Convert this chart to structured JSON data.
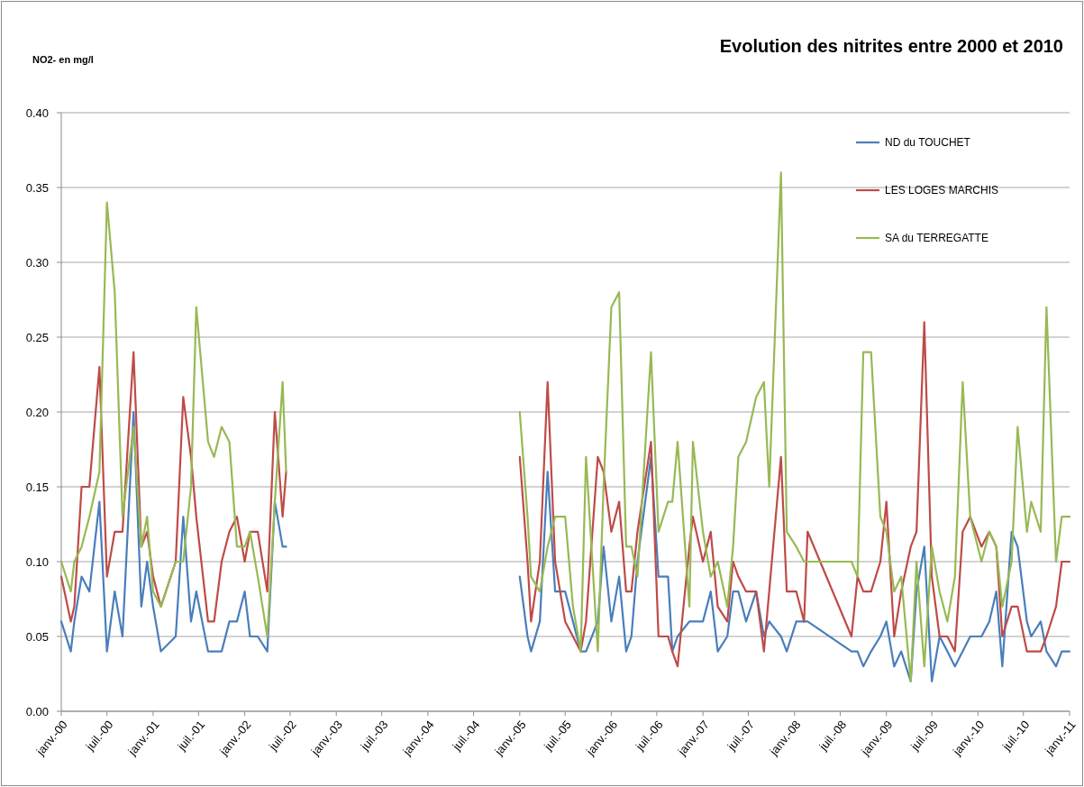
{
  "chart_data": {
    "type": "line",
    "title": "Evolution des nitrites entre 2000 et 2010",
    "ylabel": "NO2- en mg/l",
    "x": [
      "2000-01-01",
      "2000-02-08",
      "2000-02-22",
      "2000-03-22",
      "2000-04-22",
      "2000-06-01",
      "2000-07-01",
      "2000-08-01",
      "2000-09-01",
      "2000-10-15",
      "2000-11-15",
      "2000-12-08",
      "2001-01-01",
      "2001-02-01",
      "2001-04-01",
      "2001-05-01",
      "2001-06-01",
      "2001-06-22",
      "2001-08-08",
      "2001-09-01",
      "2001-10-01",
      "2001-11-01",
      "2001-12-01",
      "2002-01-01",
      "2002-01-22",
      "2002-02-22",
      "2002-04-01",
      "2002-05-01",
      "2002-06-01",
      "2002-06-15",
      "2003-06-01",
      "2005-01-01",
      "2005-02-01",
      "2005-02-15",
      "2005-03-22",
      "2005-04-22",
      "2005-05-22",
      "2005-07-01",
      "2005-08-01",
      "2005-09-01",
      "2005-09-22",
      "2005-11-08",
      "2005-12-01",
      "2006-01-01",
      "2006-02-01",
      "2006-03-01",
      "2006-03-22",
      "2006-04-15",
      "2006-06-08",
      "2006-07-08",
      "2006-08-15",
      "2006-09-01",
      "2006-09-22",
      "2006-11-08",
      "2006-11-22",
      "2007-01-01",
      "2007-02-01",
      "2007-03-01",
      "2007-04-08",
      "2007-05-01",
      "2007-05-22",
      "2007-06-22",
      "2007-08-01",
      "2007-09-01",
      "2007-09-22",
      "2007-11-08",
      "2007-12-01",
      "2008-01-08",
      "2008-02-08",
      "2008-02-22",
      "2008-08-15",
      "2008-09-08",
      "2008-10-01",
      "2008-11-01",
      "2008-12-08",
      "2009-01-01",
      "2009-02-01",
      "2009-03-01",
      "2009-04-08",
      "2009-05-01",
      "2009-06-01",
      "2009-07-01",
      "2009-08-01",
      "2009-09-01",
      "2009-10-01",
      "2009-11-01",
      "2009-12-01",
      "2010-01-15",
      "2010-02-15",
      "2010-03-15",
      "2010-04-08",
      "2010-05-15",
      "2010-06-08",
      "2010-07-15",
      "2010-08-01",
      "2010-09-08",
      "2010-10-01",
      "2010-11-08",
      "2010-12-01",
      "2011-01-01"
    ],
    "series": [
      {
        "name": "ND du TOUCHET",
        "color": "#4a7ebb",
        "values": [
          0.06,
          0.04,
          0.06,
          0.09,
          0.08,
          0.14,
          0.04,
          0.08,
          0.05,
          0.2,
          0.07,
          0.1,
          0.07,
          0.04,
          0.05,
          0.13,
          0.06,
          0.08,
          0.04,
          0.04,
          0.04,
          0.06,
          0.06,
          0.08,
          0.05,
          0.05,
          0.04,
          0.14,
          0.11,
          0.11,
          null,
          0.09,
          0.05,
          0.04,
          0.06,
          0.16,
          0.08,
          0.08,
          0.06,
          0.04,
          0.04,
          0.06,
          0.11,
          0.06,
          0.09,
          0.04,
          0.05,
          0.1,
          0.17,
          0.09,
          0.09,
          0.04,
          0.05,
          0.06,
          0.06,
          0.06,
          0.08,
          0.04,
          0.05,
          0.08,
          0.08,
          0.06,
          0.08,
          0.05,
          0.06,
          0.05,
          0.04,
          0.06,
          0.06,
          0.06,
          0.04,
          0.04,
          0.03,
          0.04,
          0.05,
          0.06,
          0.03,
          0.04,
          0.02,
          0.08,
          0.11,
          0.02,
          0.05,
          0.04,
          0.03,
          0.04,
          0.05,
          0.05,
          0.06,
          0.08,
          0.03,
          0.12,
          0.11,
          0.06,
          0.05,
          0.06,
          0.04,
          0.03,
          0.04,
          0.04
        ]
      },
      {
        "name": "LES LOGES MARCHIS",
        "color": "#be4b48",
        "values": [
          0.09,
          0.06,
          0.07,
          0.15,
          0.15,
          0.23,
          0.09,
          0.12,
          0.12,
          0.24,
          0.11,
          0.12,
          0.09,
          0.07,
          0.1,
          0.21,
          0.17,
          0.13,
          0.06,
          0.06,
          0.1,
          0.12,
          0.13,
          0.1,
          0.12,
          0.12,
          0.08,
          0.2,
          0.13,
          0.16,
          null,
          0.17,
          0.1,
          0.06,
          0.1,
          0.22,
          0.1,
          0.06,
          0.05,
          0.04,
          0.06,
          0.17,
          0.16,
          0.12,
          0.14,
          0.08,
          0.08,
          0.12,
          0.18,
          0.05,
          0.05,
          0.04,
          0.03,
          0.11,
          0.13,
          0.1,
          0.12,
          0.07,
          0.06,
          0.1,
          0.09,
          0.08,
          0.08,
          0.04,
          0.08,
          0.17,
          0.08,
          0.08,
          0.06,
          0.12,
          0.05,
          0.09,
          0.08,
          0.08,
          0.1,
          0.14,
          0.05,
          0.08,
          0.11,
          0.12,
          0.26,
          0.09,
          0.05,
          0.05,
          0.04,
          0.12,
          0.13,
          0.11,
          0.12,
          0.11,
          0.05,
          0.07,
          0.07,
          0.04,
          0.04,
          0.04,
          0.05,
          0.07,
          0.1,
          0.1
        ]
      },
      {
        "name": "SA du TERREGATTE",
        "color": "#98b954",
        "values": [
          0.1,
          0.08,
          0.1,
          0.11,
          0.13,
          0.16,
          0.34,
          0.28,
          0.13,
          0.19,
          0.11,
          0.13,
          0.08,
          0.07,
          0.1,
          0.1,
          0.15,
          0.27,
          0.18,
          0.17,
          0.19,
          0.18,
          0.11,
          0.11,
          0.12,
          0.09,
          0.05,
          0.14,
          0.22,
          0.16,
          null,
          0.2,
          0.13,
          0.09,
          0.08,
          0.11,
          0.13,
          0.13,
          0.07,
          0.04,
          0.17,
          0.04,
          0.15,
          0.27,
          0.28,
          0.11,
          0.11,
          0.09,
          0.24,
          0.12,
          0.14,
          0.14,
          0.18,
          0.07,
          0.18,
          0.12,
          0.09,
          0.1,
          0.07,
          0.11,
          0.17,
          0.18,
          0.21,
          0.22,
          0.15,
          0.36,
          0.12,
          0.11,
          0.1,
          0.1,
          0.1,
          0.09,
          0.24,
          0.24,
          0.13,
          0.12,
          0.08,
          0.09,
          0.02,
          0.1,
          0.03,
          0.11,
          0.08,
          0.06,
          0.09,
          0.22,
          0.13,
          0.1,
          0.12,
          0.11,
          0.07,
          0.1,
          0.19,
          0.12,
          0.14,
          0.12,
          0.27,
          0.1,
          0.13,
          0.13
        ]
      }
    ],
    "xlim": [
      "2000-01-01",
      "2011-01-01"
    ],
    "xticks": [
      {
        "value": "2000-01-01",
        "label": "janv.-00"
      },
      {
        "value": "2000-07-01",
        "label": "juil.-00"
      },
      {
        "value": "2001-01-01",
        "label": "janv.-01"
      },
      {
        "value": "2001-07-01",
        "label": "juil.-01"
      },
      {
        "value": "2002-01-01",
        "label": "janv.-02"
      },
      {
        "value": "2002-07-01",
        "label": "juil.-02"
      },
      {
        "value": "2003-01-01",
        "label": "janv.-03"
      },
      {
        "value": "2003-07-01",
        "label": "juil.-03"
      },
      {
        "value": "2004-01-01",
        "label": "janv.-04"
      },
      {
        "value": "2004-07-01",
        "label": "juil.-04"
      },
      {
        "value": "2005-01-01",
        "label": "janv.-05"
      },
      {
        "value": "2005-07-01",
        "label": "juil.-05"
      },
      {
        "value": "2006-01-01",
        "label": "janv.-06"
      },
      {
        "value": "2006-07-01",
        "label": "juil.-06"
      },
      {
        "value": "2007-01-01",
        "label": "janv.-07"
      },
      {
        "value": "2007-07-01",
        "label": "juil.-07"
      },
      {
        "value": "2008-01-01",
        "label": "janv.-08"
      },
      {
        "value": "2008-07-01",
        "label": "juil.-08"
      },
      {
        "value": "2009-01-01",
        "label": "janv.-09"
      },
      {
        "value": "2009-07-01",
        "label": "juil.-09"
      },
      {
        "value": "2010-01-01",
        "label": "janv.-10"
      },
      {
        "value": "2010-07-01",
        "label": "juil.-10"
      },
      {
        "value": "2011-01-01",
        "label": "janv.-11"
      }
    ],
    "ylim": [
      0,
      0.4
    ],
    "yticks": [
      {
        "value": 0,
        "label": "0.00"
      },
      {
        "value": 0.05,
        "label": "0.05"
      },
      {
        "value": 0.1,
        "label": "0.10"
      },
      {
        "value": 0.15,
        "label": "0.15"
      },
      {
        "value": 0.2,
        "label": "0.20"
      },
      {
        "value": 0.25,
        "label": "0.25"
      },
      {
        "value": 0.3,
        "label": "0.30"
      },
      {
        "value": 0.35,
        "label": "0.35"
      },
      {
        "value": 0.4,
        "label": "0.40"
      }
    ],
    "grid": "y",
    "legend": "top right",
    "marker": "none",
    "line_style": "solid"
  }
}
